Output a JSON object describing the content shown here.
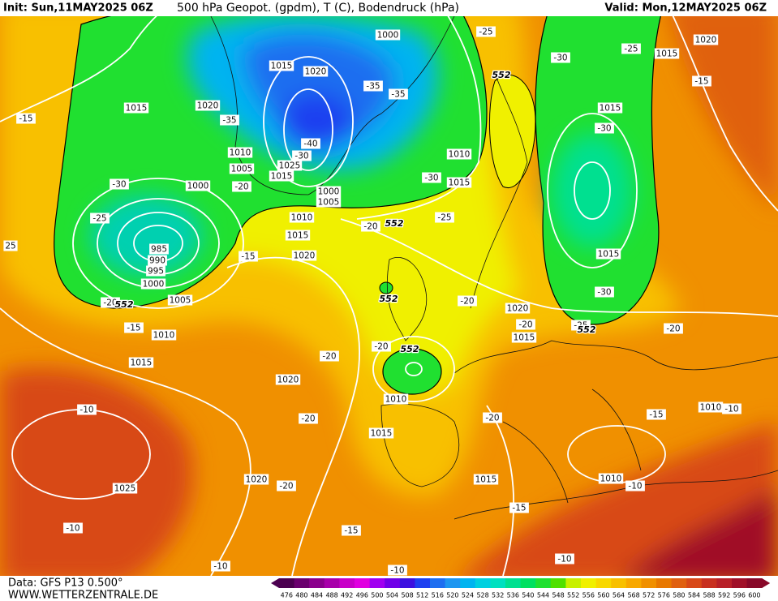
{
  "header": {
    "init": "Init: Sun,11MAY2025 06Z",
    "title": "500 hPa Geopot. (gpdm), T (C), Bodendruck (hPa)",
    "valid": "Valid: Mon,12MAY2025 06Z"
  },
  "footer": {
    "data": "Data: GFS P13 0.500°",
    "website": "WWW.WETTERZENTRALE.DE"
  },
  "color_scale": {
    "values": [
      476,
      480,
      484,
      488,
      492,
      496,
      500,
      504,
      508,
      512,
      516,
      520,
      524,
      528,
      532,
      536,
      540,
      544,
      548,
      552,
      556,
      560,
      564,
      568,
      572,
      576,
      580,
      584,
      588,
      592,
      596,
      600
    ],
    "colors": [
      "#4b0050",
      "#6a006e",
      "#8a008c",
      "#a800aa",
      "#c800c8",
      "#e000e0",
      "#a000f0",
      "#7000e8",
      "#3c10e0",
      "#1e40f0",
      "#1e6ef0",
      "#1e96f0",
      "#00b4f0",
      "#00d0e0",
      "#00e0c0",
      "#00e090",
      "#00e060",
      "#20e030",
      "#50e000",
      "#c8f000",
      "#f0f000",
      "#f8d800",
      "#f8c000",
      "#f8a800",
      "#f09000",
      "#e87800",
      "#e06010",
      "#d84818",
      "#c83020",
      "#b82028",
      "#a01028",
      "#880828"
    ]
  },
  "isobar_labels": [
    1000,
    1015,
    1020,
    1015,
    1020,
    1010,
    1005,
    1025,
    1015,
    1000,
    1000,
    1005,
    1010,
    1015,
    1010,
    1015,
    1020,
    985,
    990,
    995,
    1000,
    1005,
    1010,
    1015,
    1020,
    1010,
    1015,
    1020,
    1025,
    1015,
    1010,
    1010,
    1020,
    1015,
    1015,
    1015,
    1020,
    1015
  ],
  "temperature_labels": [
    -15,
    -30,
    -25,
    -35,
    -20,
    -15,
    -20,
    -15,
    -40,
    -30,
    -35,
    -35,
    -30,
    -25,
    -20,
    -25,
    -30,
    -25,
    -15,
    -30,
    -30,
    -20,
    -20,
    -25,
    -20,
    -20,
    -20,
    -20,
    -20,
    -15,
    -10,
    -10,
    -20,
    -15,
    -10,
    -15,
    -10,
    -10,
    -10,
    -10,
    25
  ],
  "geopotential_labels": [
    552,
    552,
    552,
    552,
    552,
    552
  ]
}
